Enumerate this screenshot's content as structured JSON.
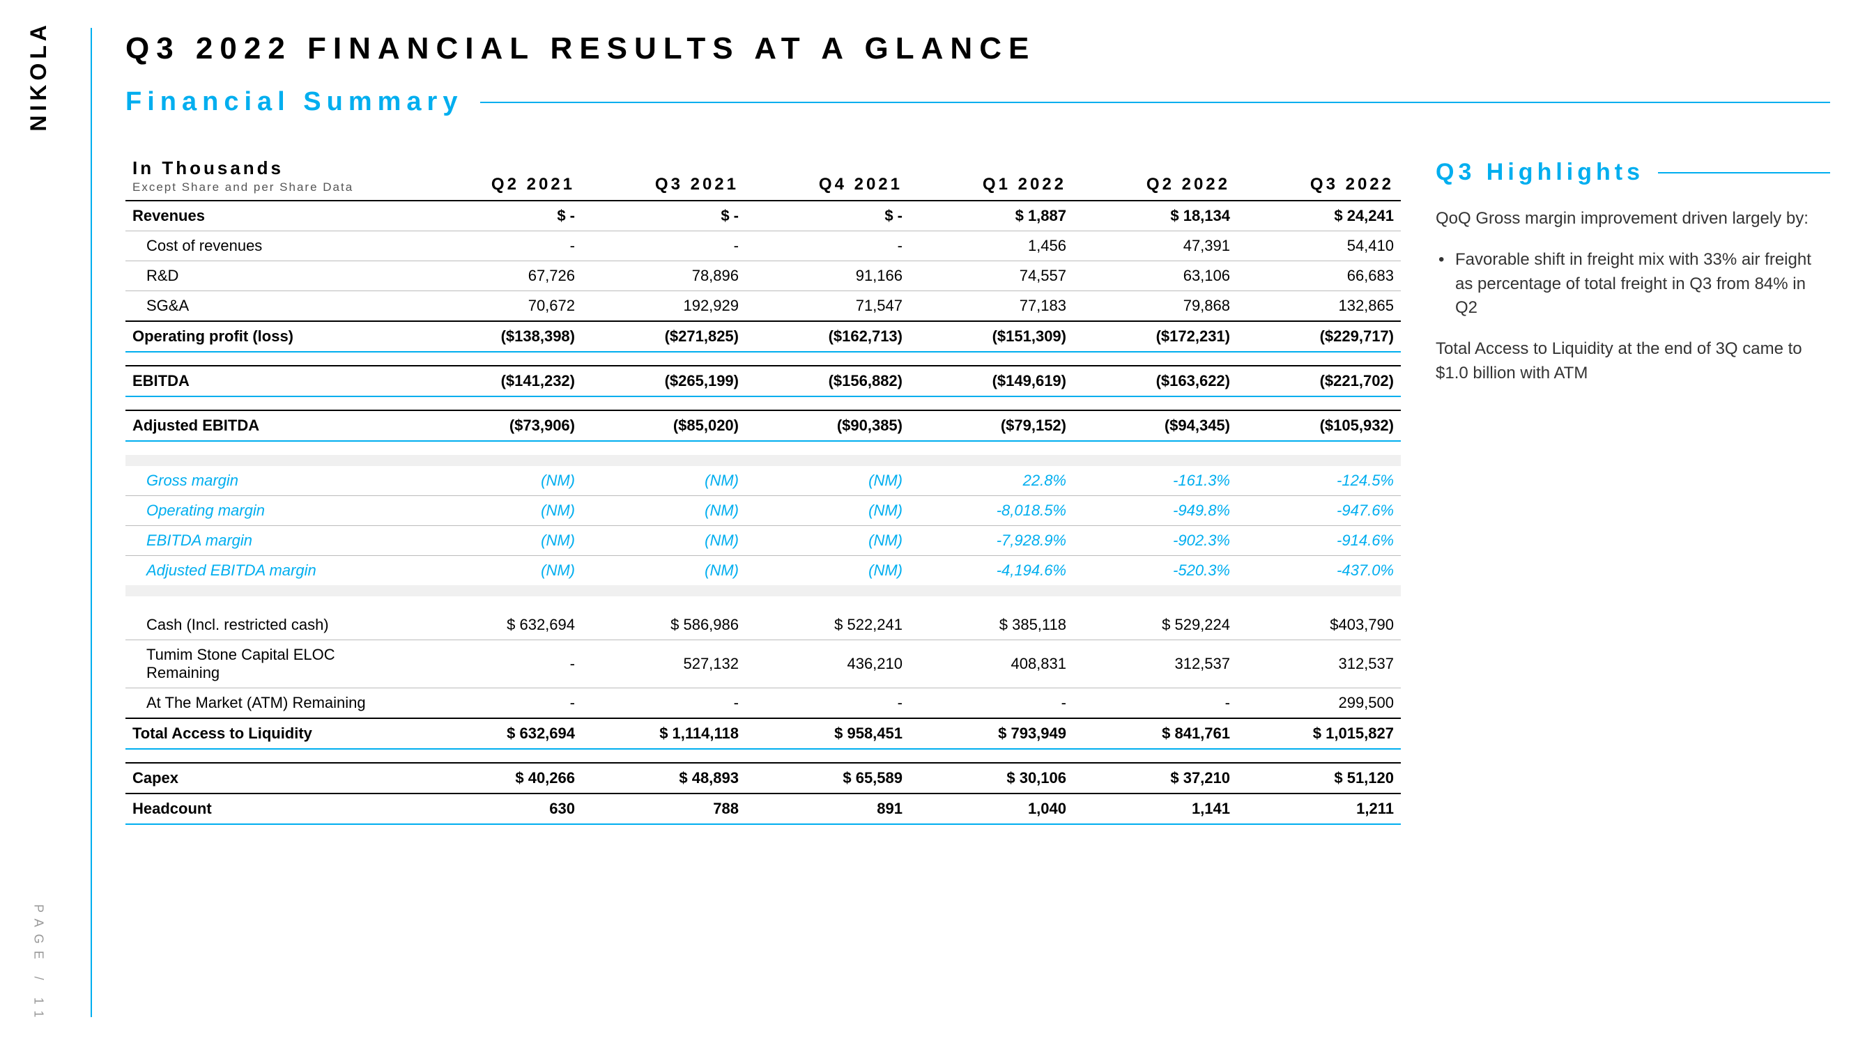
{
  "brand": "NIKOLA",
  "page_label": "PAGE / 11",
  "title": "Q3 2022 FINANCIAL RESULTS AT A GLANCE",
  "subtitle": "Financial Summary",
  "header": {
    "label_main": "In Thousands",
    "label_sub": "Except Share and per Share Data",
    "cols": [
      "Q2 2021",
      "Q3 2021",
      "Q4 2021",
      "Q1 2022",
      "Q2 2022",
      "Q3 2022"
    ]
  },
  "rows": [
    {
      "label": "Revenues",
      "vals": [
        "$ -",
        "$ -",
        "$ -",
        "$ 1,887",
        "$ 18,134",
        "$ 24,241"
      ],
      "bold": true,
      "sep_bot_grey": true
    },
    {
      "label": "Cost of revenues",
      "vals": [
        "-",
        "-",
        "-",
        "1,456",
        "47,391",
        "54,410"
      ],
      "indent": true,
      "sep_top_grey": true
    },
    {
      "label": "R&D",
      "vals": [
        "67,726",
        "78,896",
        "91,166",
        "74,557",
        "63,106",
        "66,683"
      ],
      "indent": true,
      "sep_top_grey": true
    },
    {
      "label": "SG&A",
      "vals": [
        "70,672",
        "192,929",
        "71,547",
        "77,183",
        "79,868",
        "132,865"
      ],
      "indent": true,
      "sep_top_grey": true
    },
    {
      "label": "Operating profit (loss)",
      "vals": [
        "($138,398)",
        "($271,825)",
        "($162,713)",
        "($151,309)",
        "($172,231)",
        "($229,717)"
      ],
      "bold": true,
      "sep_top_black": true,
      "sep_bot_blue": true
    },
    {
      "spacer": true
    },
    {
      "label": "EBITDA",
      "vals": [
        "($141,232)",
        "($265,199)",
        "($156,882)",
        "($149,619)",
        "($163,622)",
        "($221,702)"
      ],
      "bold": true,
      "sep_top_black": true,
      "sep_bot_blue": true
    },
    {
      "spacer": true
    },
    {
      "label": "Adjusted EBITDA",
      "vals": [
        "($73,906)",
        "($85,020)",
        "($90,385)",
        "($79,152)",
        "($94,345)",
        "($105,932)"
      ],
      "bold": true,
      "sep_top_black": true,
      "sep_bot_blue": true
    },
    {
      "spacer": true
    },
    {
      "spacer_grey": true
    },
    {
      "label": "Gross margin",
      "vals": [
        "(NM)",
        "(NM)",
        "(NM)",
        "22.8%",
        "-161.3%",
        "-124.5%"
      ],
      "emphasis": true,
      "indent": true
    },
    {
      "label": "Operating margin",
      "vals": [
        "(NM)",
        "(NM)",
        "(NM)",
        "-8,018.5%",
        "-949.8%",
        "-947.6%"
      ],
      "emphasis": true,
      "indent": true,
      "sep_top_grey": true
    },
    {
      "label": "EBITDA margin",
      "vals": [
        "(NM)",
        "(NM)",
        "(NM)",
        "-7,928.9%",
        "-902.3%",
        "-914.6%"
      ],
      "emphasis": true,
      "indent": true,
      "sep_top_grey": true
    },
    {
      "label": "Adjusted EBITDA margin",
      "vals": [
        "(NM)",
        "(NM)",
        "(NM)",
        "-4,194.6%",
        "-520.3%",
        "-437.0%"
      ],
      "emphasis": true,
      "indent": true,
      "sep_top_grey": true
    },
    {
      "spacer_grey": true
    },
    {
      "spacer": true
    },
    {
      "label": "Cash (Incl. restricted cash)",
      "vals": [
        "$ 632,694",
        "$ 586,986",
        "$ 522,241",
        "$ 385,118",
        "$ 529,224",
        "$403,790"
      ],
      "indent": true
    },
    {
      "label": "Tumim Stone Capital ELOC Remaining",
      "vals": [
        "-",
        "527,132",
        "436,210",
        "408,831",
        "312,537",
        "312,537"
      ],
      "indent": true,
      "sep_top_grey": true
    },
    {
      "label": "At The Market (ATM) Remaining",
      "vals": [
        "-",
        "-",
        "-",
        "-",
        "-",
        "299,500"
      ],
      "indent": true,
      "sep_top_grey": true
    },
    {
      "label": "Total Access to Liquidity",
      "vals": [
        "$ 632,694",
        "$ 1,114,118",
        "$ 958,451",
        "$ 793,949",
        "$ 841,761",
        "$ 1,015,827"
      ],
      "bold": true,
      "sep_top_black": true,
      "sep_bot_blue": true
    },
    {
      "spacer": true
    },
    {
      "label": "Capex",
      "vals": [
        "$ 40,266",
        "$ 48,893",
        "$ 65,589",
        "$ 30,106",
        "$ 37,210",
        "$ 51,120"
      ],
      "bold": true,
      "sep_top_black": true
    },
    {
      "label": "Headcount",
      "vals": [
        "630",
        "788",
        "891",
        "1,040",
        "1,141",
        "1,211"
      ],
      "bold": true,
      "sep_top_black": true,
      "sep_bot_blue": true
    }
  ],
  "highlights": {
    "title": "Q3 Highlights",
    "p1": "QoQ Gross margin improvement driven largely by:",
    "bullet1": "Favorable shift in freight mix with 33% air freight as percentage of total freight in Q3 from 84% in Q2",
    "p2": "Total Access to Liquidity at the end of 3Q came to $1.0 billion with ATM"
  },
  "colors": {
    "accent": "#00aeef",
    "text": "#000000",
    "muted": "#999999",
    "grey_line": "#bbbbbb",
    "grey_fill": "#f0f0f0",
    "background": "#ffffff"
  }
}
